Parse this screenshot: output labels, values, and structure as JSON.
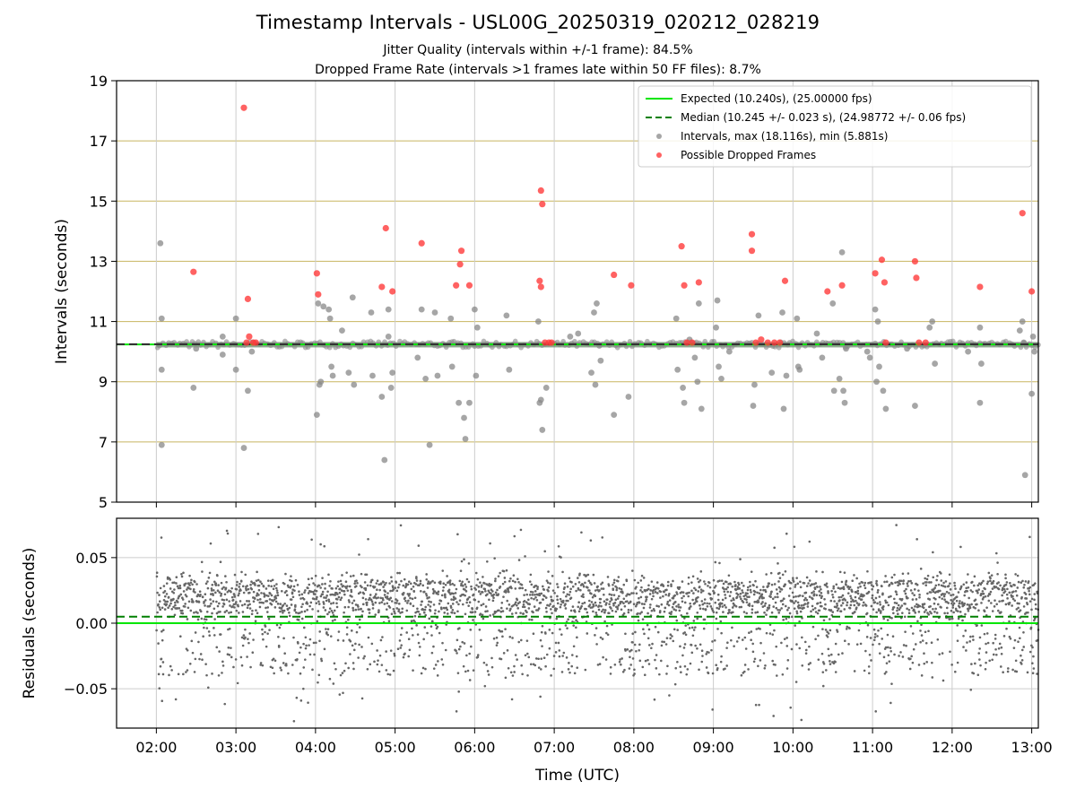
{
  "title": "Timestamp Intervals - USL00G_20250319_020212_028219",
  "subtitle_1": "Jitter Quality (intervals within +/-1 frame): 84.5%",
  "subtitle_2": "Dropped Frame Rate (intervals >1 frames late within 50 FF files): 8.7%",
  "colors": {
    "expected": "#00e600",
    "median": "#008000",
    "intervals": "#888888",
    "dropped": "#ff3b3b",
    "gridline": "#c8b560",
    "residuals": "#666666"
  },
  "chart_data": [
    {
      "type": "scatter",
      "panel": "intervals",
      "ylabel": "Intervals (seconds)",
      "ylim": [
        5,
        19
      ],
      "yticks": [
        "5",
        "7",
        "9",
        "11",
        "13",
        "15",
        "17",
        "19"
      ],
      "xlim": [
        "01:30",
        "13:05"
      ],
      "grid": true,
      "legend_placement": "top-right",
      "legend": [
        {
          "name": "Expected (10.240s), (25.00000 fps)",
          "style": "solid line"
        },
        {
          "name": "Median (10.245 +/- 0.023 s), (24.98772 +/- 0.06 fps)",
          "style": "dashed line"
        },
        {
          "name": "Intervals, max (18.116s), min (5.881s)",
          "style": "gray points"
        },
        {
          "name": "Possible Dropped Frames",
          "style": "red points"
        }
      ],
      "expected": 10.24,
      "median": 10.245,
      "series": [
        {
          "name": "Intervals, max (18.116s), min (5.881s)",
          "points": [
            [
              "02:03",
              13.6
            ],
            [
              "02:04",
              11.1
            ],
            [
              "02:04",
              9.4
            ],
            [
              "02:04",
              6.9
            ],
            [
              "02:28",
              8.8
            ],
            [
              "02:30",
              10.1
            ],
            [
              "02:50",
              10.5
            ],
            [
              "02:50",
              9.9
            ],
            [
              "03:00",
              11.1
            ],
            [
              "03:00",
              9.4
            ],
            [
              "03:06",
              6.8
            ],
            [
              "03:09",
              8.7
            ],
            [
              "03:12",
              10.0
            ],
            [
              "04:01",
              7.9
            ],
            [
              "04:02",
              11.6
            ],
            [
              "04:03",
              8.9
            ],
            [
              "04:04",
              9.0
            ],
            [
              "04:06",
              11.5
            ],
            [
              "04:10",
              11.4
            ],
            [
              "04:11",
              11.1
            ],
            [
              "04:12",
              9.5
            ],
            [
              "04:13",
              9.2
            ],
            [
              "04:20",
              10.7
            ],
            [
              "04:25",
              9.3
            ],
            [
              "04:28",
              11.8
            ],
            [
              "04:29",
              8.9
            ],
            [
              "04:42",
              11.3
            ],
            [
              "04:43",
              9.2
            ],
            [
              "04:55",
              10.5
            ],
            [
              "04:50",
              8.5
            ],
            [
              "04:52",
              6.4
            ],
            [
              "04:55",
              11.4
            ],
            [
              "04:57",
              8.8
            ],
            [
              "04:58",
              9.3
            ],
            [
              "05:17",
              9.8
            ],
            [
              "05:20",
              11.4
            ],
            [
              "05:23",
              9.1
            ],
            [
              "05:26",
              6.9
            ],
            [
              "05:30",
              11.3
            ],
            [
              "05:32",
              9.2
            ],
            [
              "05:42",
              11.1
            ],
            [
              "05:43",
              9.5
            ],
            [
              "05:48",
              8.3
            ],
            [
              "05:52",
              7.8
            ],
            [
              "05:53",
              7.1
            ],
            [
              "05:56",
              8.3
            ],
            [
              "06:00",
              11.4
            ],
            [
              "06:01",
              9.2
            ],
            [
              "06:02",
              10.8
            ],
            [
              "06:24",
              11.2
            ],
            [
              "06:26",
              9.4
            ],
            [
              "06:48",
              11.0
            ],
            [
              "06:49",
              8.3
            ],
            [
              "06:50",
              8.4
            ],
            [
              "06:51",
              7.4
            ],
            [
              "06:54",
              8.8
            ],
            [
              "07:12",
              10.5
            ],
            [
              "07:18",
              10.6
            ],
            [
              "07:28",
              9.3
            ],
            [
              "07:30",
              11.3
            ],
            [
              "07:31",
              8.9
            ],
            [
              "07:32",
              11.6
            ],
            [
              "07:34",
              10.2
            ],
            [
              "07:35",
              9.7
            ],
            [
              "07:45",
              7.9
            ],
            [
              "07:56",
              8.5
            ],
            [
              "08:32",
              11.1
            ],
            [
              "08:33",
              9.4
            ],
            [
              "08:37",
              8.8
            ],
            [
              "08:38",
              8.3
            ],
            [
              "08:42",
              10.4
            ],
            [
              "08:46",
              9.8
            ],
            [
              "08:48",
              9.0
            ],
            [
              "08:49",
              11.6
            ],
            [
              "08:51",
              8.1
            ],
            [
              "09:02",
              10.8
            ],
            [
              "09:03",
              11.7
            ],
            [
              "09:04",
              9.5
            ],
            [
              "09:06",
              9.1
            ],
            [
              "09:12",
              10.0
            ],
            [
              "09:30",
              8.2
            ],
            [
              "09:31",
              8.9
            ],
            [
              "09:34",
              11.2
            ],
            [
              "09:44",
              9.3
            ],
            [
              "09:52",
              11.3
            ],
            [
              "09:53",
              8.1
            ],
            [
              "09:55",
              9.2
            ],
            [
              "10:03",
              11.1
            ],
            [
              "10:04",
              9.5
            ],
            [
              "10:05",
              9.4
            ],
            [
              "10:18",
              10.6
            ],
            [
              "10:22",
              9.8
            ],
            [
              "10:30",
              11.6
            ],
            [
              "10:31",
              8.7
            ],
            [
              "10:35",
              9.1
            ],
            [
              "10:37",
              13.3
            ],
            [
              "10:38",
              8.7
            ],
            [
              "10:39",
              8.3
            ],
            [
              "10:40",
              10.1
            ],
            [
              "10:56",
              10.0
            ],
            [
              "10:58",
              9.8
            ],
            [
              "11:02",
              11.4
            ],
            [
              "11:03",
              9.0
            ],
            [
              "11:04",
              11.0
            ],
            [
              "11:05",
              9.5
            ],
            [
              "11:08",
              8.7
            ],
            [
              "11:10",
              8.1
            ],
            [
              "11:26",
              10.1
            ],
            [
              "11:32",
              8.2
            ],
            [
              "11:43",
              10.8
            ],
            [
              "11:45",
              11.0
            ],
            [
              "11:47",
              9.6
            ],
            [
              "12:12",
              10.0
            ],
            [
              "12:21",
              10.8
            ],
            [
              "12:22",
              9.6
            ],
            [
              "12:21",
              8.3
            ],
            [
              "12:51",
              10.7
            ],
            [
              "12:53",
              11.0
            ],
            [
              "12:54",
              10.3
            ],
            [
              "12:55",
              5.9
            ],
            [
              "13:00",
              8.6
            ],
            [
              "13:01",
              10.5
            ],
            [
              "13:02",
              10.0
            ]
          ]
        },
        {
          "name": "Possible Dropped Frames",
          "points": [
            [
              "02:28",
              12.65
            ],
            [
              "03:06",
              18.1
            ],
            [
              "03:08",
              10.3
            ],
            [
              "03:09",
              11.75
            ],
            [
              "03:10",
              10.5
            ],
            [
              "03:13",
              10.3
            ],
            [
              "03:15",
              10.3
            ],
            [
              "04:01",
              12.6
            ],
            [
              "04:02",
              11.9
            ],
            [
              "04:50",
              12.15
            ],
            [
              "04:53",
              14.1
            ],
            [
              "04:58",
              12.0
            ],
            [
              "05:20",
              13.6
            ],
            [
              "05:46",
              12.2
            ],
            [
              "05:49",
              12.9
            ],
            [
              "05:50",
              13.35
            ],
            [
              "05:56",
              12.2
            ],
            [
              "06:49",
              12.35
            ],
            [
              "06:50",
              12.15
            ],
            [
              "06:50",
              15.35
            ],
            [
              "06:51",
              14.9
            ],
            [
              "06:53",
              10.3
            ],
            [
              "06:56",
              10.3
            ],
            [
              "06:58",
              10.3
            ],
            [
              "07:45",
              12.55
            ],
            [
              "07:58",
              12.2
            ],
            [
              "08:36",
              13.5
            ],
            [
              "08:38",
              12.2
            ],
            [
              "08:40",
              10.3
            ],
            [
              "08:44",
              10.3
            ],
            [
              "08:49",
              12.3
            ],
            [
              "09:29",
              13.35
            ],
            [
              "09:29",
              13.9
            ],
            [
              "09:32",
              10.3
            ],
            [
              "09:36",
              10.4
            ],
            [
              "09:41",
              10.3
            ],
            [
              "09:46",
              10.3
            ],
            [
              "09:50",
              10.3
            ],
            [
              "09:54",
              12.35
            ],
            [
              "10:26",
              12.0
            ],
            [
              "10:37",
              12.2
            ],
            [
              "11:02",
              12.6
            ],
            [
              "11:07",
              13.05
            ],
            [
              "11:09",
              12.3
            ],
            [
              "11:10",
              10.3
            ],
            [
              "11:32",
              13.0
            ],
            [
              "11:33",
              12.45
            ],
            [
              "11:35",
              10.3
            ],
            [
              "11:40",
              10.3
            ],
            [
              "12:21",
              12.15
            ],
            [
              "12:53",
              14.6
            ],
            [
              "13:00",
              12.0
            ]
          ]
        }
      ]
    },
    {
      "type": "scatter",
      "panel": "residuals",
      "ylabel": "Residuals (seconds)",
      "xlabel": "Time (UTC)",
      "ylim": [
        -0.08,
        0.08
      ],
      "yticks": [
        "−0.05",
        "0.00",
        "0.05"
      ],
      "xlim": [
        "01:30",
        "13:05"
      ],
      "xticks": [
        "02:00",
        "03:00",
        "04:00",
        "05:00",
        "06:00",
        "07:00",
        "08:00",
        "09:00",
        "10:00",
        "11:00",
        "12:00",
        "13:00"
      ],
      "grid": true,
      "expected_line": 0.0,
      "median_line": 0.005,
      "residual_band": [
        -0.04,
        0.04
      ],
      "point_count_approx": 3200
    }
  ]
}
